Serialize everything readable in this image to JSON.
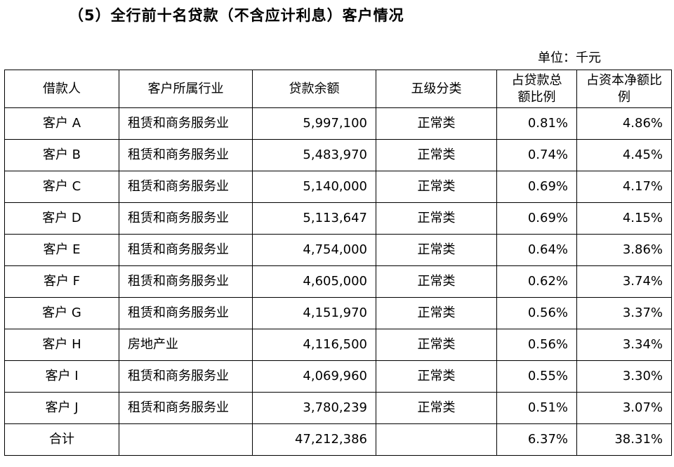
{
  "title": "（5）全行前十名贷款（不含应计利息）客户情况",
  "unit": "单位：千元",
  "table": {
    "headers": [
      "借款人",
      "客户所属行业",
      "贷款余额",
      "五级分类",
      "占贷款总额比例",
      "占资本净额比例"
    ],
    "rows": [
      {
        "borrower": "客户 A",
        "industry": "租赁和商务服务业",
        "balance": "5,997,100",
        "classification": "正常类",
        "loan_ratio": "0.81%",
        "capital_ratio": "4.86%"
      },
      {
        "borrower": "客户 B",
        "industry": "租赁和商务服务业",
        "balance": "5,483,970",
        "classification": "正常类",
        "loan_ratio": "0.74%",
        "capital_ratio": "4.45%"
      },
      {
        "borrower": "客户 C",
        "industry": "租赁和商务服务业",
        "balance": "5,140,000",
        "classification": "正常类",
        "loan_ratio": "0.69%",
        "capital_ratio": "4.17%"
      },
      {
        "borrower": "客户 D",
        "industry": "租赁和商务服务业",
        "balance": "5,113,647",
        "classification": "正常类",
        "loan_ratio": "0.69%",
        "capital_ratio": "4.15%"
      },
      {
        "borrower": "客户 E",
        "industry": "租赁和商务服务业",
        "balance": "4,754,000",
        "classification": "正常类",
        "loan_ratio": "0.64%",
        "capital_ratio": "3.86%"
      },
      {
        "borrower": "客户 F",
        "industry": "租赁和商务服务业",
        "balance": "4,605,000",
        "classification": "正常类",
        "loan_ratio": "0.62%",
        "capital_ratio": "3.74%"
      },
      {
        "borrower": "客户 G",
        "industry": "租赁和商务服务业",
        "balance": "4,151,970",
        "classification": "正常类",
        "loan_ratio": "0.56%",
        "capital_ratio": "3.37%"
      },
      {
        "borrower": "客户 H",
        "industry": "房地产业",
        "balance": "4,116,500",
        "classification": "正常类",
        "loan_ratio": "0.56%",
        "capital_ratio": "3.34%"
      },
      {
        "borrower": "客户 I",
        "industry": "租赁和商务服务业",
        "balance": "4,069,960",
        "classification": "正常类",
        "loan_ratio": "0.55%",
        "capital_ratio": "3.30%"
      },
      {
        "borrower": "客户 J",
        "industry": "租赁和商务服务业",
        "balance": "3,780,239",
        "classification": "正常类",
        "loan_ratio": "0.51%",
        "capital_ratio": "3.07%"
      }
    ],
    "total": {
      "label": "合计",
      "industry": "",
      "balance": "47,212,386",
      "classification": "",
      "loan_ratio": "6.37%",
      "capital_ratio": "38.31%"
    }
  }
}
